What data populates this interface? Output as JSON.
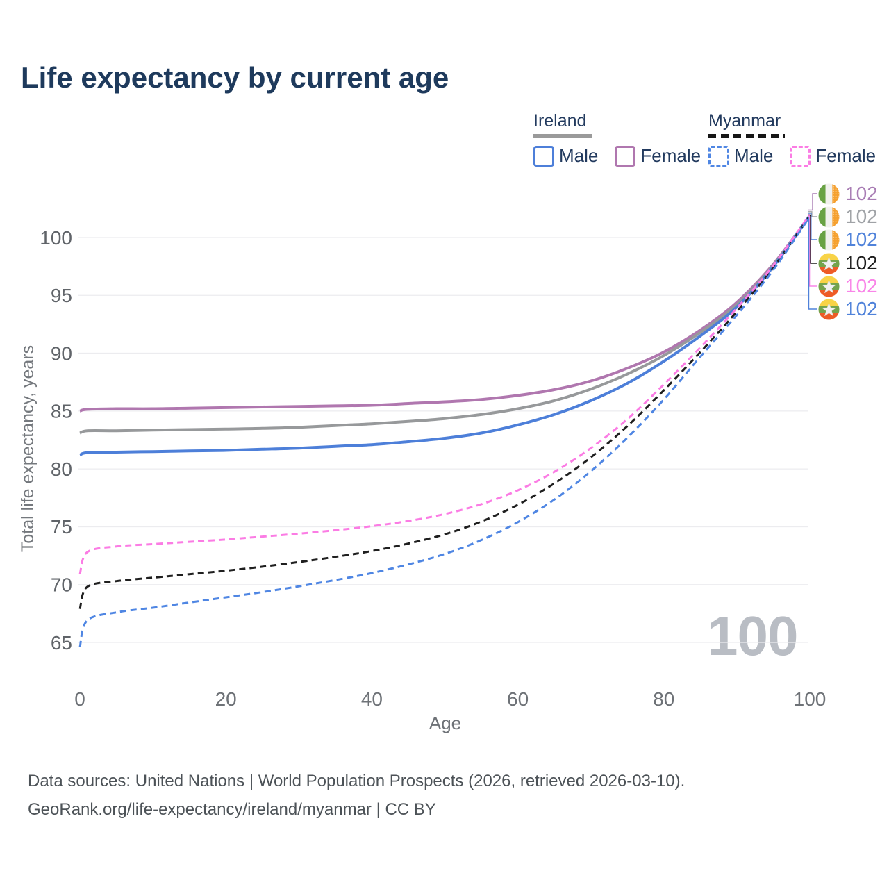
{
  "title": "Life expectancy by current age",
  "watermark": "100",
  "legend": {
    "groups": [
      {
        "label": "Ireland",
        "line_style": "solid",
        "underline_color": "#9a9a9a",
        "items": [
          {
            "label": "Male",
            "color": "#4d7fd9",
            "style": "solid"
          },
          {
            "label": "Female",
            "color": "#b077af",
            "style": "solid"
          }
        ]
      },
      {
        "label": "Myanmar",
        "line_style": "dashed",
        "underline_color": "#161616",
        "items": [
          {
            "label": "Male",
            "color": "#4f86e3",
            "style": "dashed"
          },
          {
            "label": "Female",
            "color": "#fb7ce4",
            "style": "dashed"
          }
        ]
      }
    ]
  },
  "footer": {
    "line1": "Data sources: United Nations | World Population Prospects (2026, retrieved 2026-03-10).",
    "line2": "GeoRank.org/life-expectancy/ireland/myanmar | CC BY"
  },
  "chart_data": {
    "type": "line",
    "title": "Life expectancy by current age",
    "xlabel": "Age",
    "ylabel": "Total life expectancy, years",
    "xlim": [
      0,
      100
    ],
    "ylim": [
      63,
      103
    ],
    "xticks": [
      0,
      20,
      40,
      60,
      80,
      100
    ],
    "yticks": [
      65,
      70,
      75,
      80,
      85,
      90,
      95,
      100
    ],
    "grid": "horizontal",
    "grid_color": "#ececef",
    "x": [
      0,
      1,
      5,
      10,
      15,
      20,
      25,
      30,
      35,
      40,
      45,
      50,
      55,
      60,
      65,
      70,
      75,
      80,
      85,
      90,
      95,
      100
    ],
    "series": [
      {
        "name": "Ireland Female",
        "country": "Ireland",
        "sex": "Female",
        "flag": "ireland",
        "color": "#b077af",
        "dash": "solid",
        "end_label": "102",
        "end_label_color": "#a87cb4",
        "values": [
          85.0,
          85.15,
          85.2,
          85.2,
          85.25,
          85.3,
          85.35,
          85.4,
          85.45,
          85.5,
          85.65,
          85.8,
          86.0,
          86.35,
          86.85,
          87.6,
          88.7,
          90.1,
          92.0,
          94.4,
          97.7,
          101.9
        ]
      },
      {
        "name": "Ireland Both sexes",
        "country": "Ireland",
        "sex": "Both",
        "flag": "ireland",
        "color": "#97999b",
        "dash": "solid",
        "end_label": "102",
        "end_label_color": "#9fa2a6",
        "values": [
          83.1,
          83.3,
          83.3,
          83.35,
          83.4,
          83.45,
          83.5,
          83.6,
          83.75,
          83.9,
          84.1,
          84.35,
          84.7,
          85.2,
          85.9,
          86.9,
          88.2,
          89.8,
          91.8,
          94.2,
          97.6,
          101.9
        ]
      },
      {
        "name": "Ireland Male",
        "country": "Ireland",
        "sex": "Male",
        "flag": "ireland",
        "color": "#4d7fd9",
        "dash": "solid",
        "end_label": "102",
        "end_label_color": "#4f82da",
        "values": [
          81.2,
          81.4,
          81.45,
          81.5,
          81.55,
          81.6,
          81.7,
          81.8,
          81.95,
          82.1,
          82.35,
          82.65,
          83.1,
          83.8,
          84.7,
          85.9,
          87.4,
          89.3,
          91.5,
          94.0,
          97.5,
          101.9
        ]
      },
      {
        "name": "Myanmar Both sexes",
        "country": "Myanmar",
        "sex": "Both",
        "flag": "myanmar",
        "color": "#1f1f1f",
        "dash": "dashed",
        "end_label": "102",
        "end_label_color": "#1e1e1e",
        "values": [
          67.9,
          69.8,
          70.3,
          70.6,
          70.9,
          71.2,
          71.55,
          71.95,
          72.4,
          72.9,
          73.55,
          74.35,
          75.45,
          76.9,
          78.75,
          81.0,
          83.7,
          86.8,
          90.1,
          93.6,
          97.4,
          101.9
        ]
      },
      {
        "name": "Myanmar Female",
        "country": "Myanmar",
        "sex": "Female",
        "flag": "myanmar",
        "color": "#fb7ce4",
        "dash": "dashed",
        "end_label": "102",
        "end_label_color": "#f985e8",
        "values": [
          70.9,
          72.8,
          73.3,
          73.5,
          73.7,
          73.9,
          74.15,
          74.4,
          74.7,
          75.05,
          75.5,
          76.1,
          76.95,
          78.15,
          79.75,
          81.8,
          84.3,
          87.3,
          90.5,
          93.9,
          97.6,
          102.0
        ]
      },
      {
        "name": "Myanmar Male",
        "country": "Myanmar",
        "sex": "Male",
        "flag": "myanmar",
        "color": "#4f86e3",
        "dash": "dashed",
        "end_label": "102",
        "end_label_color": "#4f82da",
        "values": [
          64.6,
          66.9,
          67.6,
          68.0,
          68.45,
          68.9,
          69.35,
          69.85,
          70.4,
          71.0,
          71.75,
          72.65,
          73.85,
          75.4,
          77.35,
          79.8,
          82.7,
          86.0,
          89.7,
          93.3,
          97.2,
          101.8
        ]
      }
    ],
    "end_label_order_top_to_bottom": [
      "Ireland Female",
      "Ireland Both sexes",
      "Ireland Male",
      "Myanmar Both sexes",
      "Myanmar Female",
      "Myanmar Male"
    ]
  }
}
